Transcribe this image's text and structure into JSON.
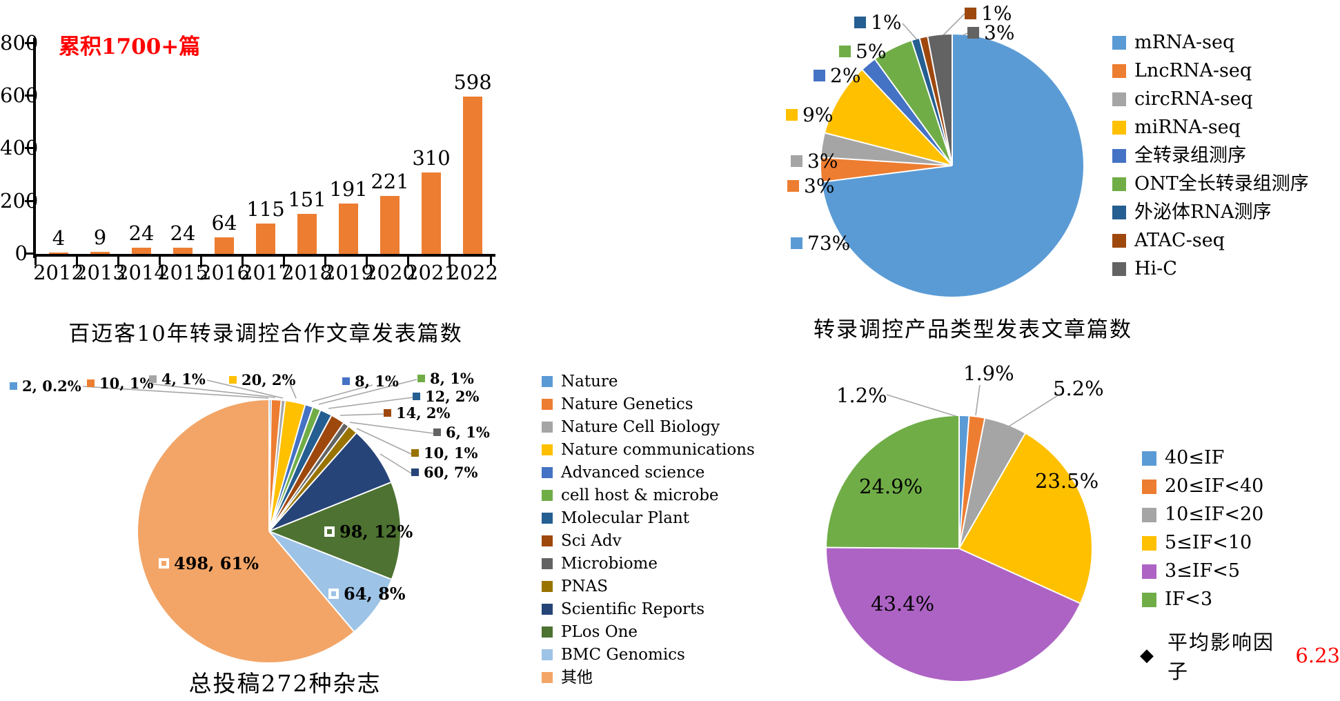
{
  "chart_data": [
    {
      "id": "papers-by-year",
      "type": "bar",
      "title": "百迈客10年转录调控合作文章发表篇数",
      "annotation": "累积1700+篇",
      "annotation_color": "#FF0000",
      "categories": [
        "2012",
        "2013",
        "2014",
        "2015",
        "2016",
        "2017",
        "2018",
        "2019",
        "2020",
        "2021",
        "2022"
      ],
      "values": [
        4,
        9,
        24,
        24,
        64,
        115,
        151,
        191,
        221,
        310,
        598
      ],
      "y_ticks": [
        0,
        200,
        400,
        600,
        800
      ],
      "ylim": [
        0,
        800
      ],
      "bar_color": "#ED7D31",
      "grid": false,
      "legend_position": "none"
    },
    {
      "id": "product-types",
      "type": "pie",
      "title": "转录调控产品类型发表文章篇数",
      "legend_position": "right",
      "slices": [
        {
          "label": "mRNA-seq",
          "pct": 73,
          "callout": "73%",
          "color": "#5B9BD5"
        },
        {
          "label": "LncRNA-seq",
          "pct": 3,
          "callout": "3%",
          "color": "#ED7D31"
        },
        {
          "label": "circRNA-seq",
          "pct": 3,
          "callout": "3%",
          "color": "#A5A5A5"
        },
        {
          "label": "miRNA-seq",
          "pct": 9,
          "callout": "9%",
          "color": "#FFC000"
        },
        {
          "label": "全转录组测序",
          "pct": 2,
          "callout": "2%",
          "color": "#4472C4"
        },
        {
          "label": "ONT全长转录组测序",
          "pct": 5,
          "callout": "5%",
          "color": "#70AD47"
        },
        {
          "label": "外泌体RNA测序",
          "pct": 1,
          "callout": "1%",
          "color": "#255E91"
        },
        {
          "label": "ATAC-seq",
          "pct": 1,
          "callout": "1%",
          "color": "#9E480E"
        },
        {
          "label": "Hi-C",
          "pct": 3,
          "callout": "3%",
          "color": "#636363"
        }
      ]
    },
    {
      "id": "journals",
      "type": "pie",
      "title": "总投稿272种杂志",
      "legend_position": "right",
      "slices": [
        {
          "label": "Nature",
          "value": 2,
          "callout": "2, 0.2%",
          "color": "#5B9BD5"
        },
        {
          "label": "Nature Genetics",
          "value": 10,
          "callout": "10, 1%",
          "color": "#ED7D31"
        },
        {
          "label": "Nature Cell Biology",
          "value": 4,
          "callout": "4, 1%",
          "color": "#A5A5A5"
        },
        {
          "label": "Nature communications",
          "value": 20,
          "callout": "20, 2%",
          "color": "#FFC000"
        },
        {
          "label": "Advanced science",
          "value": 8,
          "callout": "8, 1%",
          "color": "#4472C4"
        },
        {
          "label": "cell host & microbe",
          "value": 8,
          "callout": "8, 1%",
          "color": "#70AD47"
        },
        {
          "label": "Molecular Plant",
          "value": 12,
          "callout": "12, 2%",
          "color": "#255E91"
        },
        {
          "label": "Sci Adv",
          "value": 14,
          "callout": "14, 2%",
          "color": "#9E480E"
        },
        {
          "label": "Microbiome",
          "value": 6,
          "callout": "6, 1%",
          "color": "#636363"
        },
        {
          "label": "PNAS",
          "value": 10,
          "callout": "10, 1%",
          "color": "#997300"
        },
        {
          "label": "Scientific Reports",
          "value": 60,
          "callout": "60, 7%",
          "color": "#264478"
        },
        {
          "label": "PLos One",
          "value": 98,
          "callout": "98, 12%",
          "color": "#4D7231"
        },
        {
          "label": "BMC Genomics",
          "value": 64,
          "callout": "64, 8%",
          "color": "#9DC3E6"
        },
        {
          "label": "其他",
          "value": 498,
          "callout": "498, 61%",
          "color": "#F2A567"
        }
      ]
    },
    {
      "id": "impact-factor",
      "type": "pie",
      "title": "",
      "legend_position": "right",
      "note_bullet": "◆",
      "note_prefix": "平均影响因子",
      "note_value": "6.23",
      "note_value_color": "#FF0000",
      "slices": [
        {
          "label": "40≤IF",
          "pct": 1.2,
          "callout": "1.2%",
          "color": "#5B9BD5"
        },
        {
          "label": "20≤IF<40",
          "pct": 1.9,
          "callout": "1.9%",
          "color": "#ED7D31"
        },
        {
          "label": "10≤IF<20",
          "pct": 5.2,
          "callout": "5.2%",
          "color": "#A5A5A5"
        },
        {
          "label": "5≤IF<10",
          "pct": 23.5,
          "callout": "23.5%",
          "color": "#FFC000"
        },
        {
          "label": "3≤IF<5",
          "pct": 43.4,
          "callout": "43.4%",
          "color": "#AD63C4"
        },
        {
          "label": "IF<3",
          "pct": 24.9,
          "callout": "24.9%",
          "color": "#70AD47"
        }
      ]
    }
  ]
}
